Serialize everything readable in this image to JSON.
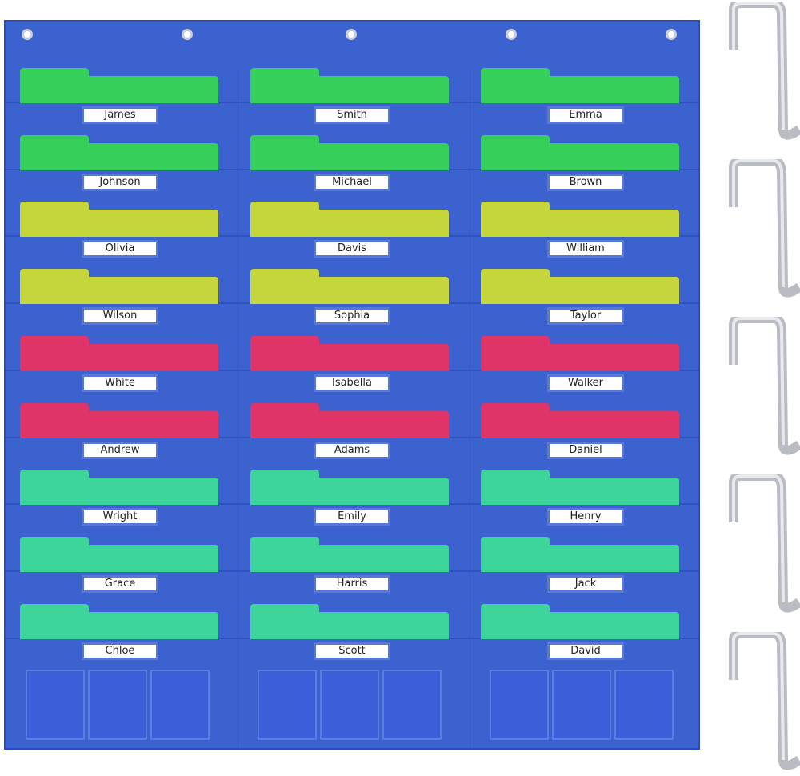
{
  "colors": {
    "chart": "#3c62cf",
    "green": "#35cf5a",
    "lime": "#c4d63b",
    "pink": "#df3468",
    "teal": "#3dd49c"
  },
  "rows": [
    {
      "color": "green",
      "names": [
        "James",
        "Smith",
        "Emma"
      ]
    },
    {
      "color": "green",
      "names": [
        "Johnson",
        "Michael",
        "Brown"
      ]
    },
    {
      "color": "lime",
      "names": [
        "Olivia",
        "Davis",
        "William"
      ]
    },
    {
      "color": "lime",
      "names": [
        "Wilson",
        "Sophia",
        "Taylor"
      ]
    },
    {
      "color": "pink",
      "names": [
        "White",
        "Isabella",
        "Walker"
      ]
    },
    {
      "color": "pink",
      "names": [
        "Andrew",
        "Adams",
        "Daniel"
      ]
    },
    {
      "color": "teal",
      "names": [
        "Wright",
        "Emily",
        "Henry"
      ]
    },
    {
      "color": "teal",
      "names": [
        "Grace",
        "Harris",
        "Jack"
      ]
    },
    {
      "color": "teal",
      "names": [
        "Chloe",
        "Scott",
        "David"
      ]
    }
  ],
  "hooks": 5
}
